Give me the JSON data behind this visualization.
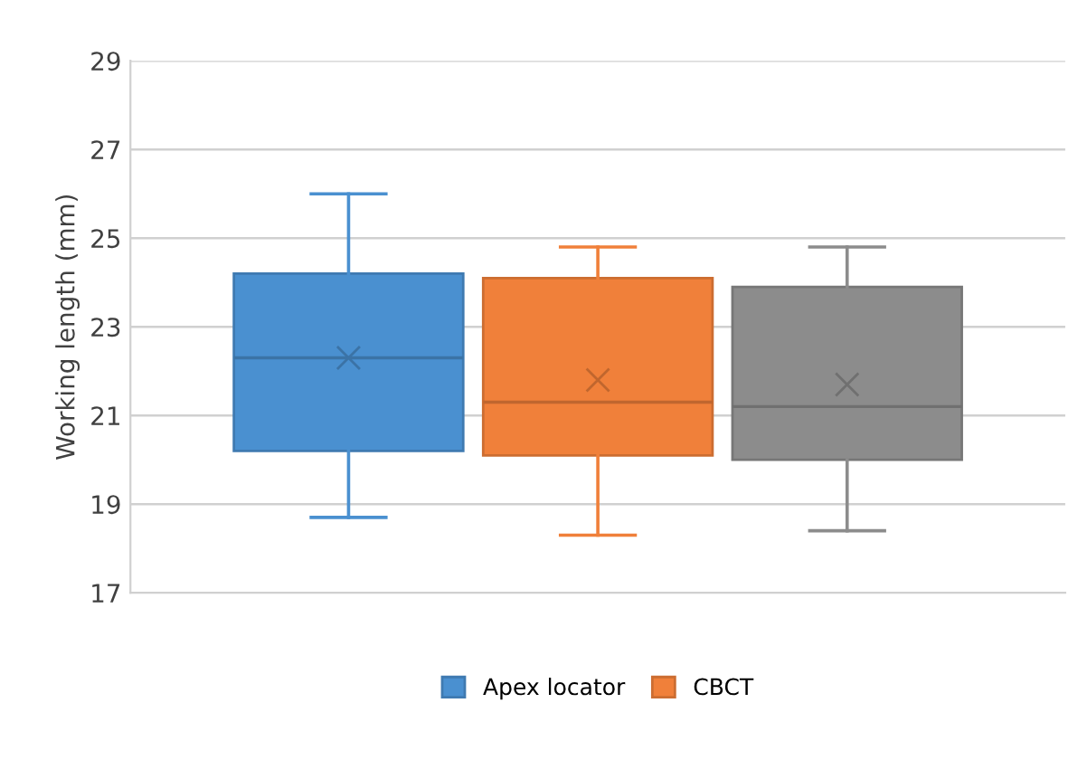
{
  "chart_data": {
    "type": "box",
    "ylabel": "Working length (mm)",
    "categories": [
      null
    ],
    "series": [
      {
        "name": "Apex locator",
        "color": "#4a90d0",
        "boxes": [
          {
            "low": 18.7,
            "q1": 20.2,
            "median": 22.3,
            "q3": 24.2,
            "high": 26.0,
            "mean": 22.3
          }
        ]
      },
      {
        "name": "CBCT",
        "color": "#f0803a",
        "boxes": [
          {
            "low": 18.3,
            "q1": 20.1,
            "median": 21.3,
            "q3": 24.1,
            "high": 24.8,
            "mean": 21.8
          }
        ]
      },
      {
        "color": "#8c8c8c",
        "boxes": [
          {
            "low": 18.4,
            "q1": 20.0,
            "median": 21.2,
            "q3": 23.9,
            "high": 24.8,
            "mean": 21.7
          }
        ]
      }
    ],
    "ylim": [
      17,
      29
    ],
    "yticks": [
      17,
      19,
      21,
      23,
      25,
      27,
      29
    ],
    "grid": "y",
    "legend": "bottom",
    "tick_labels": "y"
  }
}
